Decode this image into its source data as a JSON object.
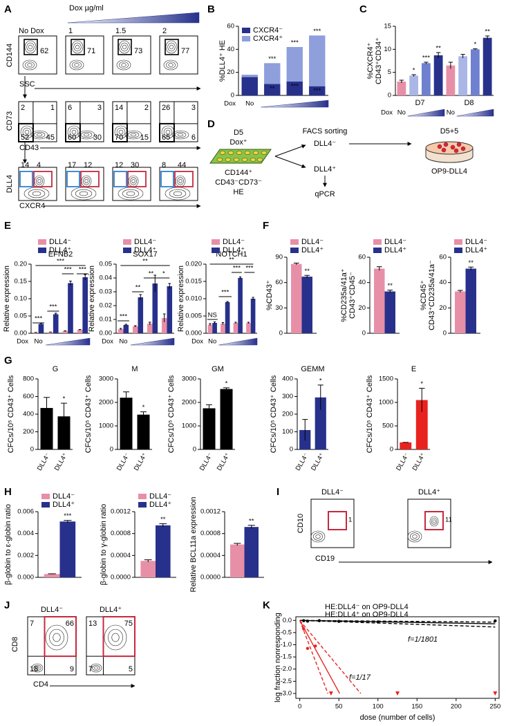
{
  "panel_labels": [
    "A",
    "B",
    "C",
    "D",
    "E",
    "F",
    "G",
    "H",
    "I",
    "J",
    "K"
  ],
  "panel_a": {
    "dox_title": "Dox µg/ml",
    "conditions": [
      "No Dox",
      1,
      1.5,
      2
    ],
    "row1": {
      "ylabel": "CD144",
      "xlabel": "SSC",
      "gates": [
        62,
        71,
        73,
        77
      ]
    },
    "row2": {
      "ylabel": "CD73",
      "xlabel": "CD43",
      "quadrants": [
        [
          2,
          1,
          52,
          45
        ],
        [
          6,
          3,
          60,
          30
        ],
        [
          14,
          2,
          70,
          15
        ],
        [
          26,
          3,
          65,
          6
        ]
      ]
    },
    "row3": {
      "ylabel": "DLL4",
      "xlabel": "CXCR4",
      "gates": [
        [
          14,
          4
        ],
        [
          17,
          12
        ],
        [
          12,
          30
        ],
        [
          8,
          44
        ]
      ]
    }
  },
  "panel_d": {
    "day": "D5",
    "dox": "Dox⁺",
    "markers": [
      "CD144⁺",
      "CD43⁻CD73⁻",
      "HE"
    ],
    "method": "FACS sorting",
    "fractions": [
      "DLL4⁻",
      "DLL4⁺"
    ],
    "assay": "qPCR",
    "culture_day": "D5+5",
    "coculture": "OP9-DLL4"
  },
  "panel_i": {
    "populations": [
      "DLL4⁻",
      "DLL4⁺"
    ],
    "ylabel": "CD10",
    "xlabel": "CD19",
    "gates": [
      1,
      11
    ]
  },
  "panel_j": {
    "populations": [
      "DLL4⁻",
      "DLL4⁺"
    ],
    "ylabel": "CD8",
    "xlabel": "CD4",
    "quadrants": [
      [
        7,
        66,
        18,
        9
      ],
      [
        13,
        75,
        7,
        5
      ]
    ]
  },
  "chart_data": [
    {
      "type": "bar",
      "stacked": true,
      "ylabel": "%DLL4⁺ HE",
      "dox_label": "Dox",
      "categories": [
        "No",
        null,
        null,
        null
      ],
      "ylim": [
        0,
        60
      ],
      "yticks": [
        0,
        20,
        40,
        60
      ],
      "series": [
        {
          "name": "CXCR4⁻",
          "color": "#27318c",
          "values": [
            16,
            10,
            12,
            8
          ],
          "significance": [
            null,
            "**",
            "***",
            "***"
          ]
        },
        {
          "name": "CXCR4⁺",
          "color": "#8e9fdc",
          "values": [
            2,
            18,
            30,
            44
          ],
          "significance": [
            null,
            "***",
            "***",
            "***"
          ]
        }
      ]
    },
    {
      "type": "bar",
      "ylabel": [
        "%CXCR4⁺",
        "CD43⁺CD34⁺"
      ],
      "dox_label": "Dox",
      "groups": [
        "D7",
        "D8"
      ],
      "categories": [
        "No",
        null,
        null,
        null,
        "No",
        null,
        null,
        null
      ],
      "ylim": [
        0,
        15
      ],
      "yticks": [
        0,
        5,
        10,
        15
      ],
      "series": [
        {
          "colors": [
            "#e88fa8",
            "#aab6e6",
            "#6f80d0",
            "#27318c",
            "#e88fa8",
            "#aab6e6",
            "#6f80d0",
            "#27318c"
          ],
          "values": [
            3.0,
            4.3,
            7.0,
            8.7,
            6.5,
            8.5,
            10.0,
            12.5
          ],
          "errors": [
            0.3,
            0.2,
            0.2,
            0.6,
            0.7,
            0.4,
            0.1,
            0.4
          ],
          "significance": [
            null,
            "*",
            "***",
            "**",
            null,
            null,
            "*",
            "**"
          ]
        }
      ]
    },
    {
      "type": "bar",
      "title": "EFNB2",
      "ylabel": "Relative expression",
      "dox_label": "Dox",
      "categories": [
        "No",
        null,
        null,
        null
      ],
      "ylim": [
        0,
        0.2
      ],
      "yticks": [
        {
          "value": 0,
          "label": "0.00"
        },
        {
          "value": 0.05,
          "label": "0.05"
        },
        {
          "value": 0.1,
          "label": "0.10"
        },
        {
          "value": 0.15,
          "label": "0.15"
        },
        {
          "value": 0.2,
          "label": "0.20"
        }
      ],
      "series": [
        {
          "name": "DLL4⁻",
          "color": "#e88fa8",
          "values": [
            0.002,
            0.003,
            0.006,
            0.01
          ],
          "errors": [
            0.0005,
            0.0005,
            0.001,
            0.001
          ]
        },
        {
          "name": "DLL4⁺",
          "color": "#27318c",
          "values": [
            0.027,
            0.055,
            0.145,
            0.162
          ],
          "errors": [
            0.002,
            0.003,
            0.006,
            0.008
          ]
        }
      ],
      "annotations": [
        "***",
        "***",
        "***",
        "***",
        "***"
      ]
    },
    {
      "type": "bar",
      "title": "SOX17",
      "ylabel": "Relative expression",
      "dox_label": "Dox",
      "categories": [
        "No",
        null,
        null,
        null
      ],
      "ylim": [
        0,
        0.05
      ],
      "yticks": [
        {
          "value": 0,
          "label": "0.00"
        },
        {
          "value": 0.01,
          "label": "0.01"
        },
        {
          "value": 0.02,
          "label": "0.02"
        },
        {
          "value": 0.03,
          "label": "0.03"
        },
        {
          "value": 0.04,
          "label": "0.04"
        },
        {
          "value": 0.05,
          "label": "0.05"
        }
      ],
      "series": [
        {
          "name": "DLL4⁻",
          "color": "#e88fa8",
          "values": [
            0.003,
            0.005,
            0.007,
            0.011
          ],
          "errors": [
            0.0005,
            0.0005,
            0.001,
            0.003
          ]
        },
        {
          "name": "DLL4⁺",
          "color": "#27318c",
          "values": [
            0.006,
            0.026,
            0.036,
            0.034
          ],
          "errors": [
            0.0005,
            0.002,
            0.006,
            0.002
          ]
        }
      ],
      "annotations": [
        "***",
        "**",
        "**",
        "*",
        "**"
      ]
    },
    {
      "type": "bar",
      "title": "NOTCH1",
      "ylabel": "Relative expression",
      "dox_label": "Dox",
      "categories": [
        "No",
        null,
        null,
        null
      ],
      "ylim": [
        0,
        0.02
      ],
      "yticks": [
        {
          "value": 0,
          "label": "0.000"
        },
        {
          "value": 0.005,
          "label": "0.005"
        },
        {
          "value": 0.01,
          "label": "0.010"
        },
        {
          "value": 0.015,
          "label": "0.015"
        },
        {
          "value": 0.02,
          "label": "0.020"
        }
      ],
      "series": [
        {
          "name": "DLL4⁻",
          "color": "#e88fa8",
          "values": [
            0.0025,
            0.0028,
            0.003,
            0.003
          ],
          "errors": [
            0.0003,
            0.0003,
            0.0002,
            0.0002
          ]
        },
        {
          "name": "DLL4⁺",
          "color": "#27318c",
          "values": [
            0.003,
            0.009,
            0.016,
            0.01
          ],
          "errors": [
            0.0003,
            0.0002,
            0.0003,
            0.0004
          ]
        }
      ],
      "annotations": [
        "NS",
        "***",
        "***",
        "***",
        "**"
      ]
    },
    {
      "type": "bar",
      "ylabel": "%CD43⁺",
      "categories": [
        null
      ],
      "ylim": [
        0,
        90
      ],
      "yticks": [
        0,
        30,
        60,
        90
      ],
      "series": [
        {
          "name": "DLL4⁻",
          "color": "#e88fa8",
          "values": [
            82
          ],
          "errors": [
            1
          ]
        },
        {
          "name": "DLL4⁺",
          "color": "#27318c",
          "values": [
            67
          ],
          "errors": [
            1.5
          ],
          "significance": [
            "**"
          ]
        }
      ]
    },
    {
      "type": "bar",
      "ylabel": [
        "%CD235a/41a⁺",
        "CD43⁺CD45⁻"
      ],
      "categories": [
        null
      ],
      "ylim": [
        0,
        60
      ],
      "yticks": [
        0,
        20,
        40,
        60
      ],
      "series": [
        {
          "name": "DLL4⁻",
          "color": "#e88fa8",
          "values": [
            51
          ],
          "errors": [
            1.5
          ]
        },
        {
          "name": "DLL4⁺",
          "color": "#27318c",
          "values": [
            33
          ],
          "errors": [
            1
          ],
          "significance": [
            "**"
          ]
        }
      ]
    },
    {
      "type": "bar",
      "ylabel": [
        "%CD45⁺",
        "CD43⁺CD235a/41a⁻"
      ],
      "categories": [
        null
      ],
      "ylim": [
        0,
        60
      ],
      "yticks": [
        0,
        20,
        40,
        60
      ],
      "series": [
        {
          "name": "DLL4⁻",
          "color": "#e88fa8",
          "values": [
            33
          ],
          "errors": [
            0.8
          ]
        },
        {
          "name": "DLL4⁺",
          "color": "#27318c",
          "values": [
            51
          ],
          "errors": [
            1.2
          ],
          "significance": [
            "**"
          ]
        }
      ]
    },
    {
      "type": "bar",
      "title": "G",
      "ylabel": "CFCs/10⁵ CD43⁺ Cells",
      "categories": [
        "DLL4⁻",
        "DLL4⁺"
      ],
      "ylim": [
        0,
        800
      ],
      "yticks": [
        0,
        200,
        400,
        600,
        800
      ],
      "series": [
        {
          "color": "#000000",
          "values": [
            470,
            375
          ],
          "errors": [
            120,
            150
          ],
          "significance": [
            null,
            "*"
          ]
        }
      ]
    },
    {
      "type": "bar",
      "title": "M",
      "ylabel": "CFCs/10⁵ CD43⁺ Cells",
      "categories": [
        "DLL4⁻",
        "DLL4⁺"
      ],
      "ylim": [
        0,
        3000
      ],
      "yticks": [
        0,
        1000,
        2000,
        3000
      ],
      "series": [
        {
          "color": "#000000",
          "values": [
            2200,
            1480
          ],
          "errors": [
            250,
            120
          ],
          "significance": [
            null,
            "*"
          ]
        }
      ]
    },
    {
      "type": "bar",
      "title": "GM",
      "ylabel": "CFCs/10⁵ CD43⁺ Cells",
      "categories": [
        "DLL4⁻",
        "DLL4⁺"
      ],
      "ylim": [
        0,
        3000
      ],
      "yticks": [
        0,
        1000,
        2000,
        3000
      ],
      "series": [
        {
          "color": "#000000",
          "values": [
            1750,
            2570
          ],
          "errors": [
            150,
            50
          ],
          "significance": [
            null,
            "*"
          ]
        }
      ]
    },
    {
      "type": "bar",
      "title": "GEMM",
      "ylabel": "CFCs/10⁵ CD43⁺ Cells",
      "categories": [
        "DLL4⁻",
        "DLL4⁺"
      ],
      "ylim": [
        0,
        400
      ],
      "yticks": [
        0,
        100,
        200,
        300,
        400
      ],
      "series": [
        {
          "color": "#27318c",
          "values": [
            110,
            295
          ],
          "errors": [
            60,
            70
          ],
          "significance": [
            null,
            "*"
          ]
        }
      ]
    },
    {
      "type": "bar",
      "title": "E",
      "ylabel": "CFCs/10⁵ CD43⁺ Cells",
      "categories": [
        "DLL4⁻",
        "DLL4⁺"
      ],
      "ylim": [
        0,
        1500
      ],
      "yticks": [
        0,
        500,
        1000,
        1500
      ],
      "series": [
        {
          "color": "#e8231f",
          "values": [
            150,
            1050
          ],
          "errors": [
            0,
            250
          ],
          "significance": [
            null,
            "*"
          ]
        }
      ]
    },
    {
      "type": "bar",
      "ylabel": "β-globin to ε-globin ratio",
      "categories": [
        null
      ],
      "ylim": [
        0,
        0.006
      ],
      "yticks": [
        {
          "value": 0,
          "label": "0.000"
        },
        {
          "value": 0.002,
          "label": "0.002"
        },
        {
          "value": 0.004,
          "label": "0.004"
        },
        {
          "value": 0.006,
          "label": "0.006"
        }
      ],
      "series": [
        {
          "name": "DLL4⁻",
          "color": "#e88fa8",
          "values": [
            0.0003
          ],
          "errors": [
            2e-05
          ]
        },
        {
          "name": "DLL4⁺",
          "color": "#27318c",
          "values": [
            0.0051
          ],
          "errors": [
            0.0001
          ],
          "significance": [
            "***"
          ]
        }
      ]
    },
    {
      "type": "bar",
      "ylabel": "β-globin to γ-globin ratio",
      "categories": [
        null
      ],
      "ylim": [
        0,
        0.0012
      ],
      "yticks": [
        {
          "value": 0,
          "label": "0.0000"
        },
        {
          "value": 0.0004,
          "label": "0.0004"
        },
        {
          "value": 0.0008,
          "label": "0.0008"
        },
        {
          "value": 0.0012,
          "label": "0.0012"
        }
      ],
      "series": [
        {
          "name": "DLL4⁻",
          "color": "#e88fa8",
          "values": [
            0.0003
          ],
          "errors": [
            2e-05
          ]
        },
        {
          "name": "DLL4⁺",
          "color": "#27318c",
          "values": [
            0.00095
          ],
          "errors": [
            3e-05
          ],
          "significance": [
            "**"
          ]
        }
      ]
    },
    {
      "type": "bar",
      "ylabel": "Relative BCL11a expression",
      "categories": [
        null
      ],
      "ylim": [
        0,
        0.0012
      ],
      "yticks": [
        {
          "value": 0,
          "label": "0.0000"
        },
        {
          "value": 0.0004,
          "label": "0.0004"
        },
        {
          "value": 0.0008,
          "label": "0.0008"
        },
        {
          "value": 0.0012,
          "label": "0.0012"
        }
      ],
      "series": [
        {
          "color": "#e88fa8",
          "values": [
            0.0006
          ],
          "errors": [
            2e-05
          ]
        },
        {
          "color": "#27318c",
          "values": [
            0.00092
          ],
          "errors": [
            3e-05
          ],
          "significance": [
            "**"
          ]
        }
      ]
    },
    {
      "type": "line",
      "xlabel": "dose (number of cells)",
      "ylabel": "log fraction nonresponding",
      "xlim": [
        -5,
        255
      ],
      "ylim": [
        -3.2,
        0.15
      ],
      "xticks": [
        0,
        50,
        100,
        150,
        200,
        250
      ],
      "yticks": [
        {
          "value": -3,
          "label": "-3.0"
        },
        {
          "value": -2.5,
          "label": "-2.5"
        },
        {
          "value": -2,
          "label": "-2.0"
        },
        {
          "value": -1.5,
          "label": "-1.5"
        },
        {
          "value": -1,
          "label": "-1.0"
        },
        {
          "value": -0.5,
          "label": "-0.5"
        },
        {
          "value": 0,
          "label": "0.0"
        }
      ],
      "series": [
        {
          "name": "HE:DLL4⁻ on OP9-DLL4",
          "color": "#000000",
          "x": [
            0,
            250
          ],
          "values": [
            0,
            -0.139
          ]
        },
        {
          "color": "#000000",
          "dashed": true,
          "x": [
            0,
            250
          ],
          "values": [
            0,
            -0.07
          ]
        },
        {
          "color": "#000000",
          "dashed": true,
          "x": [
            0,
            250
          ],
          "values": [
            0,
            -0.27
          ]
        },
        {
          "name": "HE:DLL4⁺ on OP9-DLL4",
          "color": "#e8231f",
          "x": [
            0,
            51
          ],
          "values": [
            0,
            -3.0
          ]
        },
        {
          "color": "#e8231f",
          "dashed": true,
          "x": [
            0,
            36
          ],
          "values": [
            0,
            -3.0
          ]
        },
        {
          "color": "#e8231f",
          "dashed": true,
          "x": [
            0,
            78
          ],
          "values": [
            0,
            -3.0
          ]
        },
        {
          "color": "#000000",
          "marker": "circle",
          "x": [
            5,
            10,
            25,
            50,
            100,
            250
          ],
          "values": [
            -0.01,
            -0.03,
            -0.01,
            -0.04,
            -0.06,
            -0.02
          ]
        },
        {
          "color": "#e8231f",
          "marker": "circle",
          "x": [
            5,
            10,
            20
          ],
          "values": [
            -0.35,
            -1.15,
            -1.05
          ]
        },
        {
          "color": "#e8231f",
          "marker": "triangle",
          "x": [
            40,
            125,
            250
          ],
          "values": [
            -3.0,
            -3.0,
            -3.0
          ]
        }
      ],
      "annotations": [
        "f=1/1801",
        "f=1/17"
      ]
    }
  ]
}
